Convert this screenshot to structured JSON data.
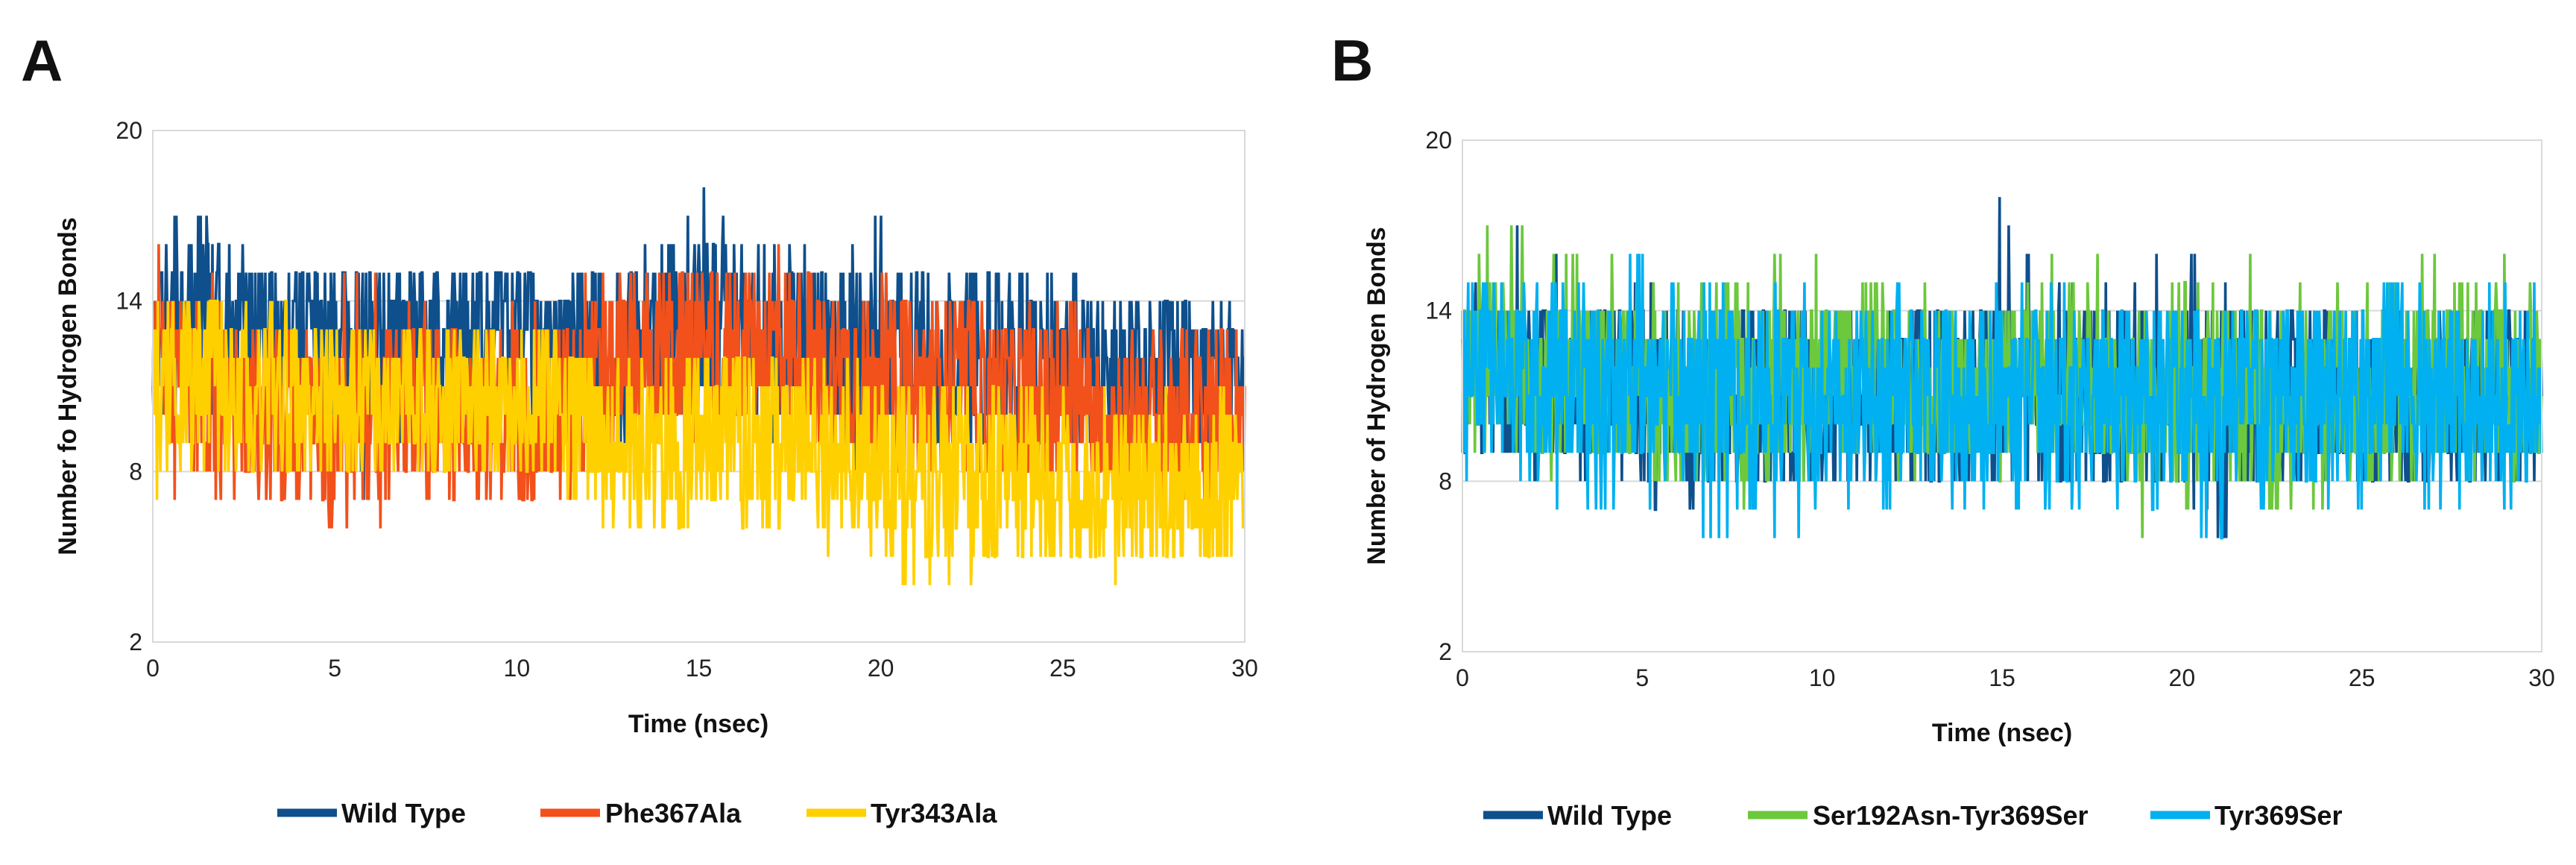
{
  "chart_data": [
    {
      "panel_label": "A",
      "type": "line",
      "xlabel": "Time (nsec)",
      "ylabel": "Number fo Hydrogen Bonds",
      "xlim": [
        0,
        30
      ],
      "ylim": [
        2,
        20
      ],
      "xticks": [
        "0",
        "5",
        "10",
        "15",
        "20",
        "25",
        "30"
      ],
      "yticks": [
        "2",
        "8",
        "14",
        "20"
      ],
      "grid": true,
      "legend_position": "bottom-center",
      "series": [
        {
          "name": "Wild Type",
          "color": "#0e4f8c",
          "x": [
            0,
            1,
            2,
            3,
            4,
            5,
            6,
            7,
            8,
            9,
            10,
            11,
            12,
            13,
            14,
            15,
            16,
            17,
            18,
            19,
            20,
            21,
            22,
            23,
            24,
            25,
            26,
            27,
            28,
            29,
            30
          ],
          "mean": [
            13,
            13.5,
            13,
            13,
            13,
            12.5,
            12.5,
            13,
            12.5,
            13,
            13,
            12.5,
            12,
            12.5,
            13,
            13.5,
            13,
            13,
            12.5,
            12,
            12.5,
            12,
            12,
            12,
            11.5,
            12,
            11.5,
            11.5,
            11.5,
            11.5,
            11.5
          ],
          "min": [
            10,
            10,
            10,
            10,
            10,
            9,
            7,
            10,
            10,
            10,
            10,
            9,
            9,
            9,
            10,
            10,
            10,
            9,
            9,
            7,
            9,
            9,
            9,
            9,
            9,
            9,
            9,
            9,
            9,
            9,
            10
          ],
          "max": [
            17,
            17,
            16,
            15,
            15,
            15,
            15,
            15,
            15,
            15,
            15,
            14,
            15,
            15,
            16,
            18,
            17,
            16,
            16,
            16,
            17,
            15,
            15,
            15,
            15,
            15,
            15,
            15,
            14,
            14,
            14
          ]
        },
        {
          "name": "Phe367Ala",
          "color": "#f2511b",
          "x": [
            0,
            1,
            2,
            3,
            4,
            5,
            6,
            7,
            8,
            9,
            10,
            11,
            12,
            13,
            14,
            15,
            16,
            17,
            18,
            19,
            20,
            21,
            22,
            23,
            24,
            25,
            26,
            27,
            28,
            29,
            30
          ],
          "mean": [
            12,
            11,
            10.5,
            10,
            9.5,
            9.5,
            10,
            10.5,
            10,
            10,
            10,
            10,
            11,
            11.5,
            12,
            12,
            12.5,
            12.5,
            12,
            11.5,
            11,
            11,
            11,
            10.5,
            10.5,
            10.5,
            10,
            10,
            10,
            10,
            10.5
          ],
          "min": [
            8,
            7,
            7,
            6,
            5,
            6,
            6,
            7,
            7,
            7,
            7,
            7,
            8,
            9,
            9,
            9,
            10,
            9,
            9,
            8,
            8,
            8,
            8,
            8,
            8,
            8,
            8,
            7,
            7,
            7,
            8
          ],
          "max": [
            16,
            16,
            14,
            13,
            13,
            15,
            15,
            14,
            13,
            13,
            14,
            14,
            15,
            15,
            16,
            15,
            16,
            16,
            15,
            15,
            15,
            14,
            14,
            14,
            14,
            14,
            13,
            13,
            13,
            13,
            13
          ]
        },
        {
          "name": "Tyr343Ala",
          "color": "#ffd000",
          "x": [
            0,
            1,
            2,
            3,
            4,
            5,
            6,
            7,
            8,
            9,
            10,
            11,
            12,
            13,
            14,
            15,
            16,
            17,
            18,
            19,
            20,
            21,
            22,
            23,
            24,
            25,
            26,
            27,
            28,
            29,
            30
          ],
          "mean": [
            11,
            11,
            11,
            10.5,
            10.5,
            10.5,
            10.5,
            10.5,
            10.5,
            10.5,
            10.5,
            10.5,
            9,
            9,
            9,
            9,
            9,
            9,
            9,
            8.5,
            8,
            8,
            8,
            7.5,
            8,
            7.5,
            7.5,
            7.5,
            7.5,
            7.5,
            7.5
          ],
          "min": [
            7,
            8,
            8,
            8,
            8,
            8,
            8,
            8,
            8,
            8,
            8,
            8,
            6,
            6,
            6,
            6,
            6,
            6,
            6,
            5,
            5,
            4,
            4,
            5,
            5,
            5,
            4,
            5,
            5,
            4,
            6
          ],
          "max": [
            14,
            14,
            14,
            14,
            14,
            13,
            14,
            13,
            13,
            13,
            13,
            13,
            12,
            12,
            12,
            12,
            12,
            12,
            12,
            12,
            11,
            11,
            11,
            11,
            11,
            11,
            11,
            11,
            11,
            11,
            11
          ]
        }
      ]
    },
    {
      "panel_label": "B",
      "type": "line",
      "xlabel": "Time (nsec)",
      "ylabel": "Number of Hydrogen Bonds",
      "xlim": [
        0,
        30
      ],
      "ylim": [
        2,
        20
      ],
      "xticks": [
        "0",
        "5",
        "10",
        "15",
        "20",
        "25",
        "30"
      ],
      "yticks": [
        "2",
        "8",
        "14",
        "20"
      ],
      "grid": true,
      "legend_position": "bottom-center",
      "series": [
        {
          "name": "Wild Type",
          "color": "#0e4f8c",
          "x": [
            0,
            1,
            2,
            3,
            4,
            5,
            6,
            7,
            8,
            9,
            10,
            11,
            12,
            13,
            14,
            15,
            16,
            17,
            18,
            19,
            20,
            21,
            22,
            23,
            24,
            25,
            26,
            27,
            28,
            29,
            30
          ],
          "mean": [
            12,
            12,
            11.5,
            11.5,
            11.5,
            11,
            11,
            11,
            11,
            11,
            11,
            11,
            11,
            11,
            11,
            11.5,
            11,
            11,
            11,
            11,
            11,
            11,
            11,
            11,
            11,
            11,
            11,
            11,
            11,
            11,
            11
          ],
          "min": [
            9,
            9,
            8,
            8,
            8,
            8,
            6,
            8,
            8,
            8,
            8,
            8,
            8,
            8,
            8,
            8,
            8,
            8,
            8,
            8,
            8,
            6,
            8,
            8,
            8,
            8,
            8,
            8,
            8,
            8,
            8
          ],
          "max": [
            16,
            17,
            17,
            15,
            14,
            15,
            14,
            14,
            14,
            14,
            14,
            14,
            14,
            14,
            15,
            18,
            15,
            15,
            15,
            15,
            17,
            15,
            14,
            14,
            14,
            14,
            14,
            14,
            14,
            14,
            14
          ]
        },
        {
          "name": "Ser192Asn-Tyr369Ser",
          "color": "#6cc83c",
          "x": [
            0,
            1,
            2,
            3,
            4,
            5,
            6,
            7,
            8,
            9,
            10,
            11,
            12,
            13,
            14,
            15,
            16,
            17,
            18,
            19,
            20,
            21,
            22,
            23,
            24,
            25,
            26,
            27,
            28,
            29,
            30
          ],
          "mean": [
            12,
            12,
            12,
            11.5,
            11.5,
            11.5,
            11,
            11,
            11,
            11.5,
            11.5,
            11.5,
            11.5,
            11.5,
            11.5,
            11.5,
            12,
            12,
            11.5,
            11,
            11,
            11,
            11,
            11,
            11,
            11,
            11,
            11.5,
            12,
            12,
            11
          ],
          "min": [
            8,
            7,
            8,
            8,
            8,
            8,
            8,
            8,
            7,
            8,
            8,
            8,
            8,
            8,
            8,
            8,
            8,
            8,
            7,
            6,
            7,
            6,
            7,
            7,
            7,
            8,
            8,
            8,
            8,
            8,
            8
          ],
          "max": [
            16,
            17,
            17,
            16,
            16,
            15,
            15,
            15,
            15,
            16,
            16,
            15,
            15,
            15,
            15,
            15,
            16,
            16,
            16,
            16,
            15,
            15,
            16,
            15,
            15,
            15,
            15,
            16,
            17,
            16,
            15
          ]
        },
        {
          "name": "Tyr369Ser",
          "color": "#00b0f0",
          "x": [
            0,
            1,
            2,
            3,
            4,
            5,
            6,
            7,
            8,
            9,
            10,
            11,
            12,
            13,
            14,
            15,
            16,
            17,
            18,
            19,
            20,
            21,
            22,
            23,
            24,
            25,
            26,
            27,
            28,
            29,
            30
          ],
          "mean": [
            12,
            12,
            11.5,
            11.5,
            11.5,
            11.5,
            11,
            11,
            11,
            11,
            11,
            11,
            11,
            11,
            11,
            11,
            11,
            11,
            11,
            11,
            11,
            11,
            11,
            11,
            11,
            11,
            11,
            11,
            11,
            11,
            11
          ],
          "min": [
            8,
            8,
            8,
            7,
            7,
            7,
            7,
            6,
            7,
            6,
            7,
            7,
            7,
            7,
            7,
            7,
            7,
            7,
            7,
            7,
            7,
            6,
            7,
            7,
            7,
            7,
            7,
            7,
            7,
            7,
            7
          ],
          "max": [
            15,
            15,
            15,
            15,
            15,
            16,
            15,
            15,
            15,
            15,
            15,
            15,
            15,
            14,
            14,
            15,
            15,
            15,
            14,
            14,
            14,
            14,
            14,
            14,
            14,
            14,
            15,
            15,
            15,
            15,
            15
          ]
        }
      ]
    }
  ]
}
